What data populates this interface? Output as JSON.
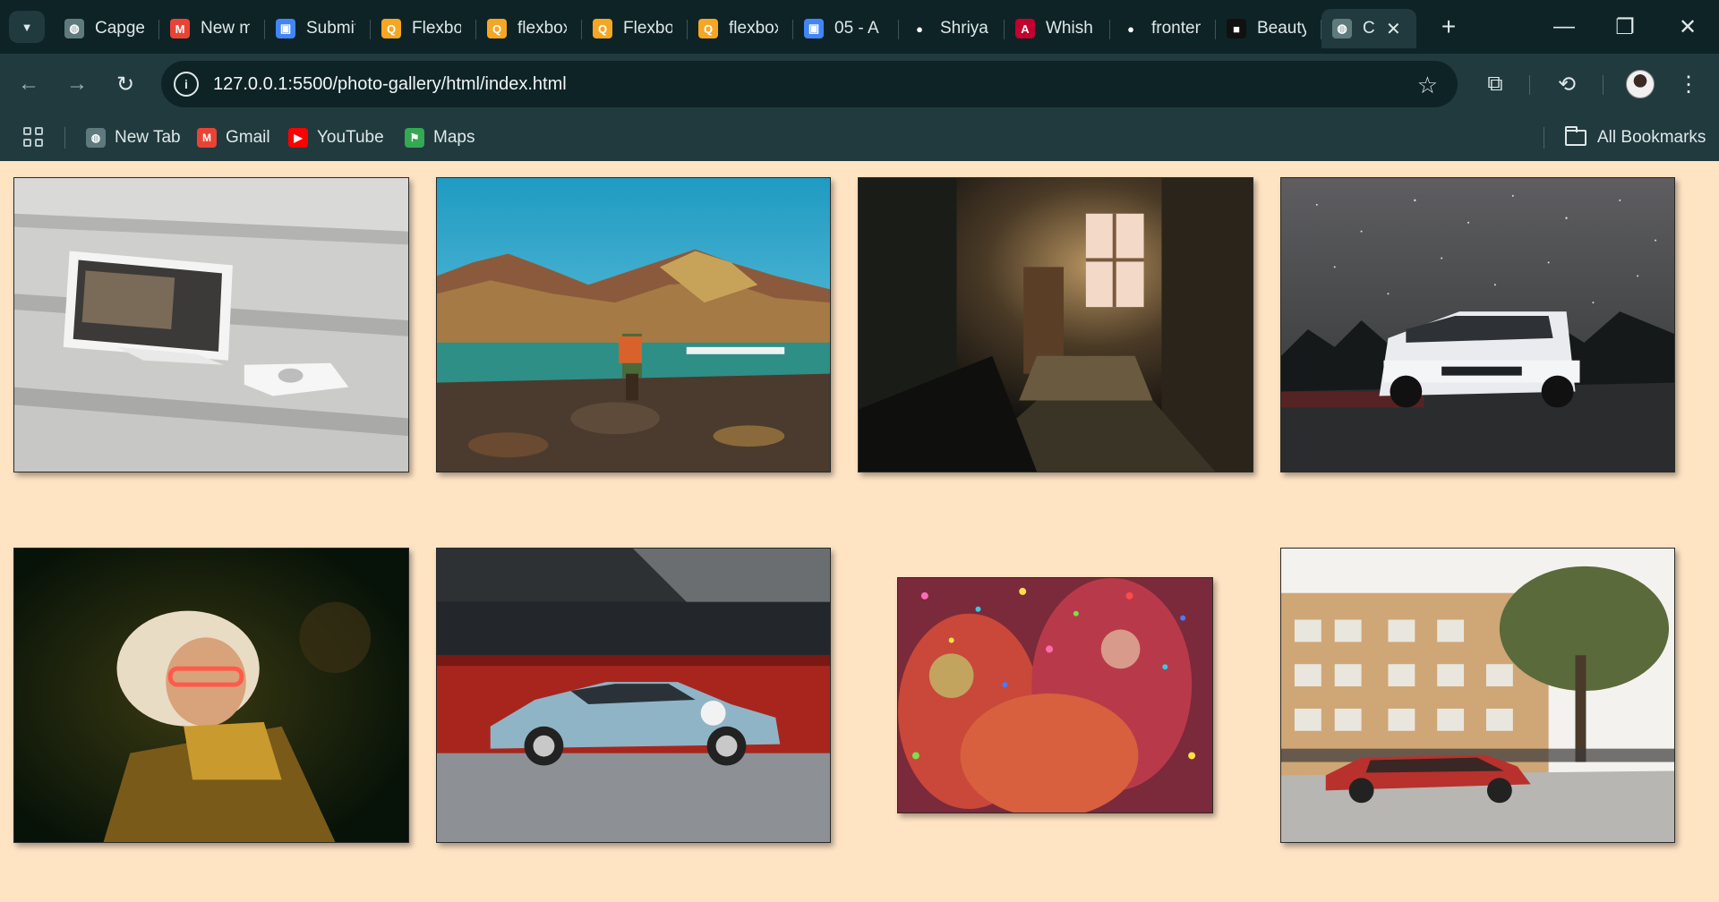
{
  "browser": {
    "tabs": [
      {
        "title": "Capgemini",
        "favicon": "globe-icon",
        "color": "#5f7a7d"
      },
      {
        "title": "New message",
        "favicon": "gmail-icon",
        "color": "#ea4335"
      },
      {
        "title": "Submit",
        "favicon": "classroom-icon",
        "color": "#4285f4"
      },
      {
        "title": "Flexbox",
        "favicon": "flexbox-icon",
        "color": "#f5a623"
      },
      {
        "title": "flexbox",
        "favicon": "flexbox-icon",
        "color": "#f5a623"
      },
      {
        "title": "Flexbox",
        "favicon": "flexbox-icon",
        "color": "#f5a623"
      },
      {
        "title": "flexbox",
        "favicon": "flexbox-icon",
        "color": "#f5a623"
      },
      {
        "title": "05 - A",
        "favicon": "classroom-icon",
        "color": "#4285f4"
      },
      {
        "title": "Shriya",
        "favicon": "github-icon",
        "color": "#0e2326"
      },
      {
        "title": "Whish",
        "favicon": "angular-icon",
        "color": "#c3002f"
      },
      {
        "title": "frontend",
        "favicon": "github-icon",
        "color": "#0e2326"
      },
      {
        "title": "Beauty",
        "favicon": "unsplash-icon",
        "color": "#111111"
      }
    ],
    "active_tab": {
      "title": "C",
      "favicon": "globe-icon"
    },
    "url": "127.0.0.1:5500/photo-gallery/html/index.html",
    "bookmarks": [
      {
        "label": "New Tab",
        "icon": "globe-icon",
        "color": "#5f7a7d"
      },
      {
        "label": "Gmail",
        "icon": "gmail-icon",
        "color": "#ea4335"
      },
      {
        "label": "YouTube",
        "icon": "youtube-icon",
        "color": "#ff0000"
      },
      {
        "label": "Maps",
        "icon": "maps-icon",
        "color": "#34a853"
      }
    ],
    "all_bookmarks_label": "All Bookmarks"
  },
  "gallery": {
    "background": "#ffe4c4",
    "photos": [
      {
        "name": "photo-pos-terminal",
        "subject": "POS terminal on concrete steps"
      },
      {
        "name": "photo-mountain-lake",
        "subject": "Hiker at a mountain lake"
      },
      {
        "name": "photo-dark-window-room",
        "subject": "Dark hallway with lit window"
      },
      {
        "name": "photo-white-suv-night",
        "subject": "White SUV under starry sky"
      },
      {
        "name": "photo-woman-neon-glasses",
        "subject": "Woman with glowing glasses"
      },
      {
        "name": "photo-porsche-garage",
        "subject": "Blue sports car in garage"
      },
      {
        "name": "photo-holi-festival",
        "subject": "Holi festival crowd with confetti"
      },
      {
        "name": "photo-red-car-building",
        "subject": "Red car in front of building"
      }
    ]
  }
}
